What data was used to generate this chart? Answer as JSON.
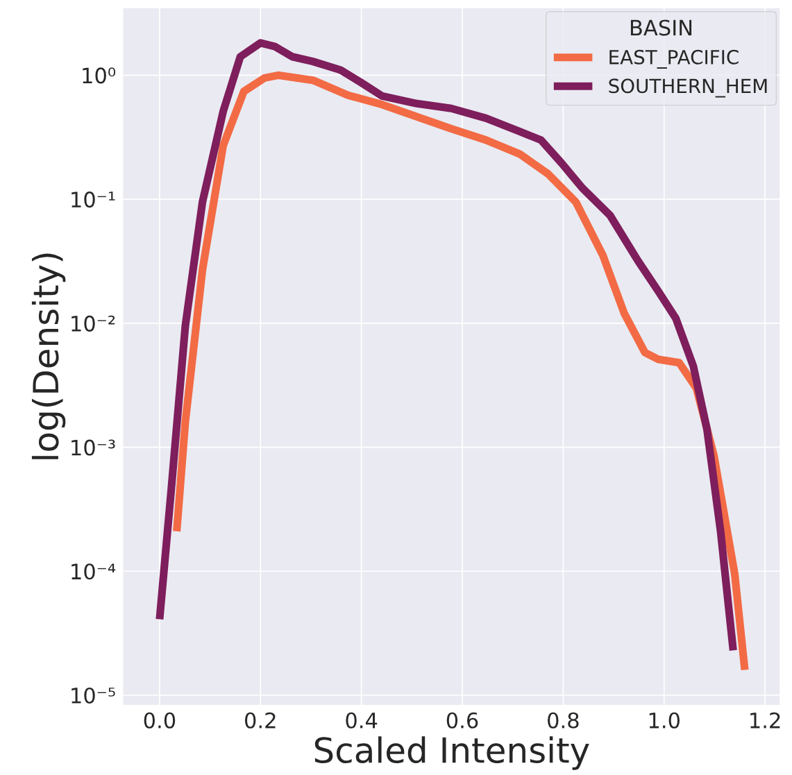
{
  "chart_data": {
    "type": "line",
    "xlabel": "Scaled Intensity",
    "ylabel": "log(Density)",
    "legend_title": "BASIN",
    "legend": "top right",
    "grid": true,
    "log": "y",
    "xlim": [
      -0.073,
      1.23
    ],
    "xticks": [
      {
        "value": 0,
        "label": "0.0"
      },
      0.2,
      0.4,
      0.6,
      0.8,
      {
        "value": 1,
        "label": "1.0"
      },
      1.2
    ],
    "ylim": [
      8.3e-06,
      3.5
    ],
    "yticks": [
      {
        "value": 1e-05,
        "label": "10⁻⁵"
      },
      {
        "value": 0.0001,
        "label": "10⁻⁴"
      },
      {
        "value": 0.001,
        "label": "10⁻³"
      },
      {
        "value": 0.01,
        "label": "10⁻²"
      },
      {
        "value": 0.1,
        "label": "10⁻¹"
      },
      {
        "value": 1,
        "label": "10⁰"
      }
    ],
    "series": [
      {
        "name": "EAST_PACIFIC",
        "color": "#f26b45",
        "x": [
          0.034,
          0.051,
          0.085,
          0.126,
          0.167,
          0.208,
          0.236,
          0.304,
          0.373,
          0.441,
          0.578,
          0.647,
          0.715,
          0.77,
          0.825,
          0.879,
          0.921,
          0.962,
          0.989,
          1.03,
          1.064,
          1.099,
          1.14,
          1.16
        ],
        "values": [
          0.00021,
          0.0016,
          0.027,
          0.27,
          0.74,
          0.95,
          1.0,
          0.91,
          0.69,
          0.58,
          0.37,
          0.3,
          0.23,
          0.16,
          0.095,
          0.035,
          0.012,
          0.0058,
          0.0051,
          0.0048,
          0.003,
          0.00085,
          9.5e-05,
          1.6e-05
        ]
      },
      {
        "name": "SOUTHERN_HEM",
        "color": "#7e1e5c",
        "x": [
          0.0,
          0.023,
          0.051,
          0.085,
          0.126,
          0.16,
          0.2,
          0.229,
          0.263,
          0.304,
          0.359,
          0.4,
          0.441,
          0.51,
          0.578,
          0.647,
          0.715,
          0.756,
          0.797,
          0.838,
          0.893,
          0.948,
          0.989,
          1.023,
          1.058,
          1.085,
          1.112,
          1.137
        ],
        "values": [
          4.1e-05,
          0.00045,
          0.0095,
          0.095,
          0.51,
          1.41,
          1.82,
          1.7,
          1.41,
          1.29,
          1.1,
          0.87,
          0.68,
          0.59,
          0.54,
          0.45,
          0.35,
          0.3,
          0.195,
          0.123,
          0.074,
          0.032,
          0.018,
          0.011,
          0.0045,
          0.0014,
          0.00021,
          2.3e-05
        ]
      }
    ]
  }
}
